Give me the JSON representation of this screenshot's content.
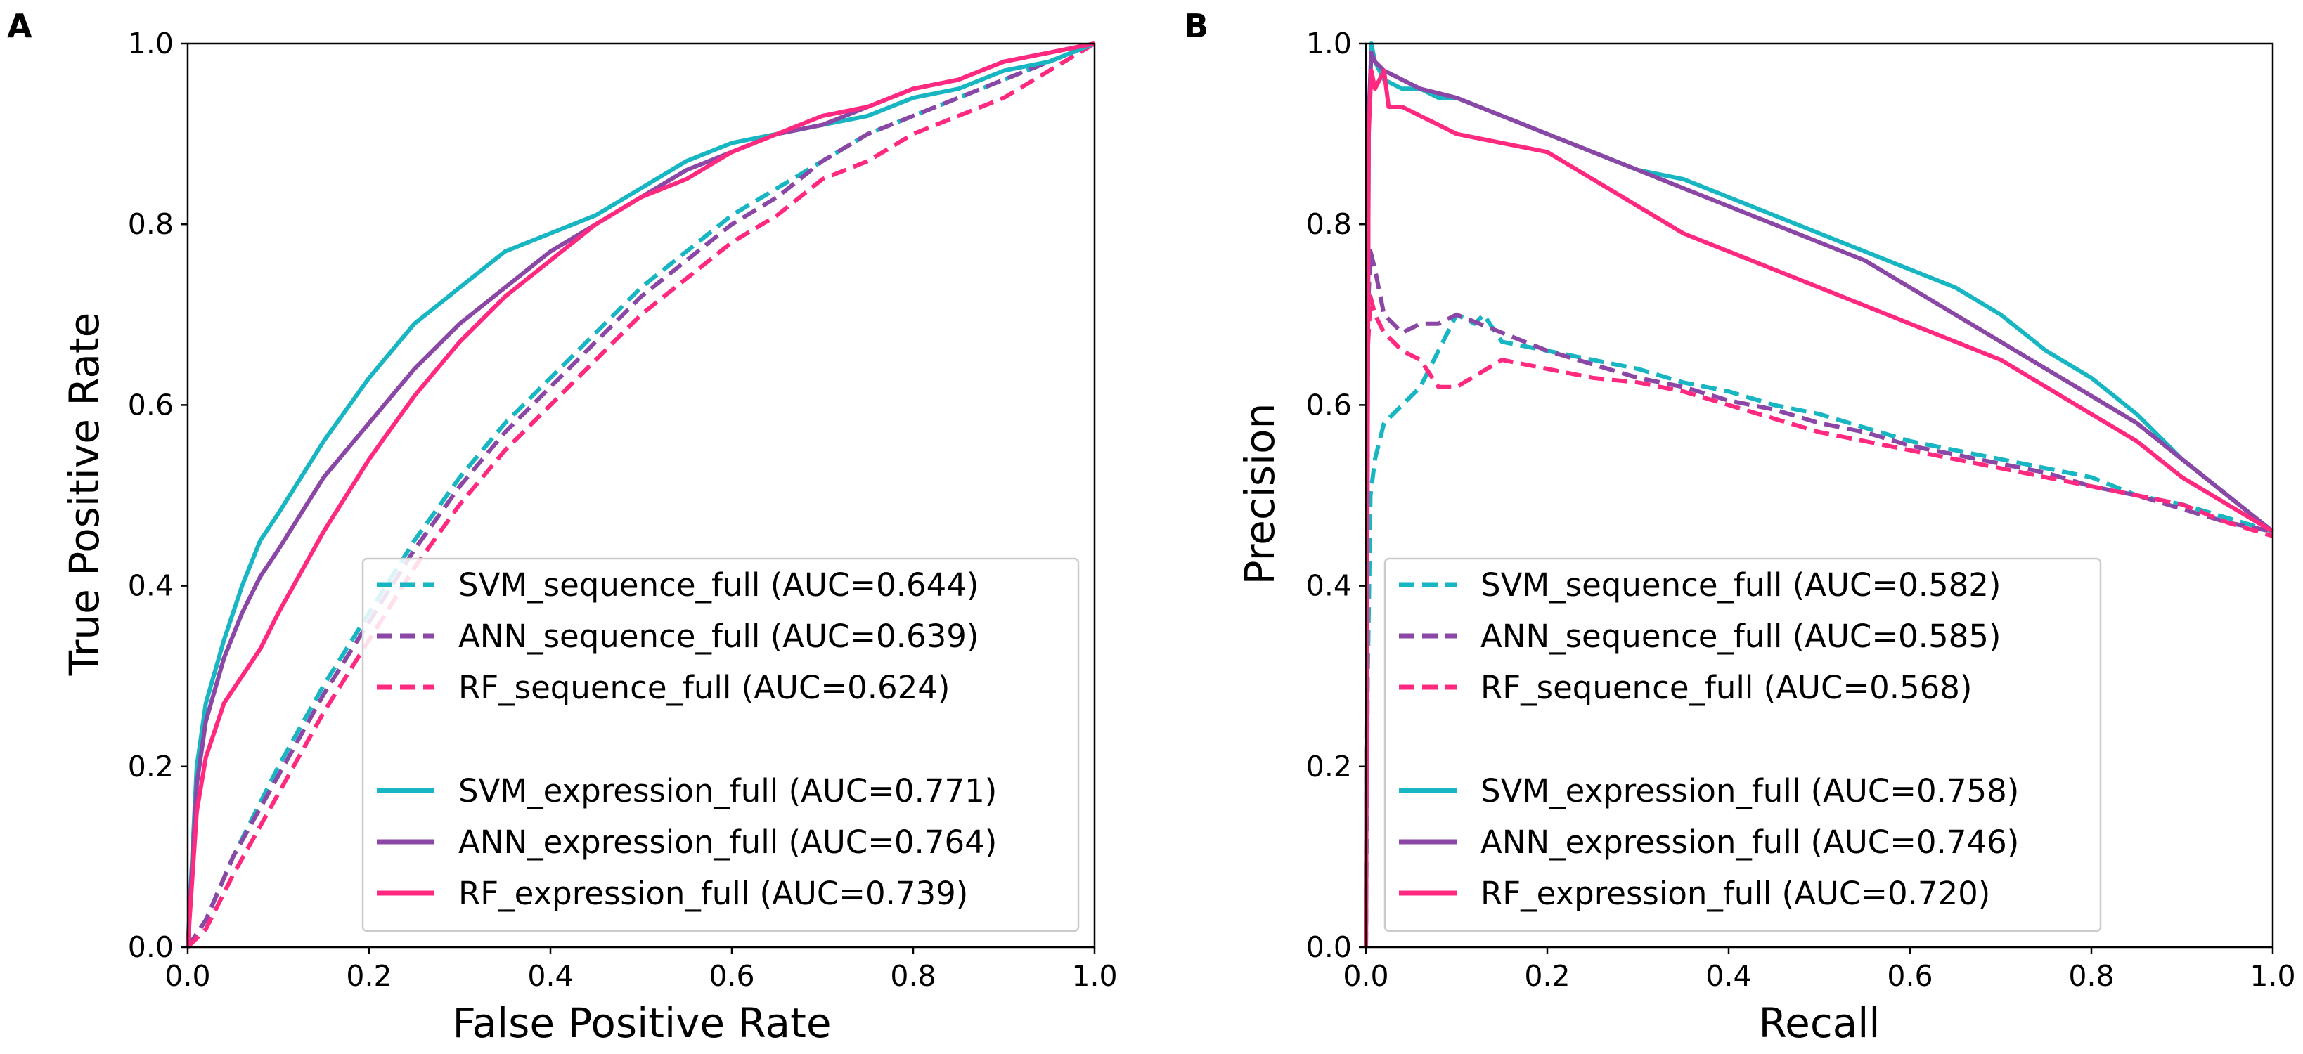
{
  "figure": {
    "panels": [
      "A",
      "B"
    ]
  },
  "colors": {
    "svm": "#17b6c2",
    "ann": "#8b47a6",
    "rf": "#ff2a7f"
  },
  "chart_data": [
    {
      "type": "line",
      "panel": "A",
      "title": "",
      "xlabel": "False Positive Rate",
      "ylabel": "True Positive Rate",
      "xlim": [
        0.0,
        1.0
      ],
      "ylim": [
        0.0,
        1.0
      ],
      "xticks": [
        "0.0",
        "0.2",
        "0.4",
        "0.6",
        "0.8",
        "1.0"
      ],
      "yticks": [
        "0.0",
        "0.2",
        "0.4",
        "0.6",
        "0.8",
        "1.0"
      ],
      "legend_position": "lower-right",
      "series": [
        {
          "name": "SVM_sequence_full (AUC=0.644)",
          "model": "svm",
          "dash": true,
          "x": [
            0.0,
            0.02,
            0.05,
            0.1,
            0.15,
            0.2,
            0.25,
            0.3,
            0.35,
            0.4,
            0.45,
            0.5,
            0.55,
            0.6,
            0.65,
            0.7,
            0.75,
            0.8,
            0.85,
            0.9,
            0.95,
            1.0
          ],
          "y": [
            0.0,
            0.03,
            0.1,
            0.2,
            0.29,
            0.37,
            0.45,
            0.52,
            0.58,
            0.63,
            0.68,
            0.73,
            0.77,
            0.81,
            0.84,
            0.87,
            0.9,
            0.92,
            0.94,
            0.96,
            0.98,
            1.0
          ]
        },
        {
          "name": "ANN_sequence_full (AUC=0.639)",
          "model": "ann",
          "dash": true,
          "x": [
            0.0,
            0.02,
            0.05,
            0.1,
            0.15,
            0.2,
            0.25,
            0.3,
            0.35,
            0.4,
            0.45,
            0.5,
            0.55,
            0.6,
            0.65,
            0.7,
            0.75,
            0.8,
            0.85,
            0.9,
            0.95,
            1.0
          ],
          "y": [
            0.0,
            0.03,
            0.1,
            0.19,
            0.28,
            0.36,
            0.44,
            0.51,
            0.57,
            0.62,
            0.67,
            0.72,
            0.76,
            0.8,
            0.83,
            0.87,
            0.9,
            0.92,
            0.94,
            0.96,
            0.98,
            1.0
          ]
        },
        {
          "name": "RF_sequence_full (AUC=0.624)",
          "model": "rf",
          "dash": true,
          "x": [
            0.0,
            0.02,
            0.05,
            0.1,
            0.15,
            0.2,
            0.25,
            0.3,
            0.35,
            0.4,
            0.45,
            0.5,
            0.55,
            0.6,
            0.65,
            0.7,
            0.75,
            0.8,
            0.85,
            0.9,
            0.95,
            1.0
          ],
          "y": [
            0.0,
            0.02,
            0.08,
            0.17,
            0.26,
            0.34,
            0.42,
            0.49,
            0.55,
            0.6,
            0.65,
            0.7,
            0.74,
            0.78,
            0.81,
            0.85,
            0.87,
            0.9,
            0.92,
            0.94,
            0.97,
            1.0
          ]
        },
        {
          "name": "SVM_expression_full (AUC=0.771)",
          "model": "svm",
          "dash": false,
          "x": [
            0.0,
            0.01,
            0.02,
            0.04,
            0.06,
            0.08,
            0.1,
            0.15,
            0.2,
            0.25,
            0.3,
            0.35,
            0.4,
            0.45,
            0.5,
            0.55,
            0.6,
            0.65,
            0.7,
            0.75,
            0.8,
            0.85,
            0.9,
            0.95,
            1.0
          ],
          "y": [
            0.0,
            0.2,
            0.27,
            0.34,
            0.4,
            0.45,
            0.48,
            0.56,
            0.63,
            0.69,
            0.73,
            0.77,
            0.79,
            0.81,
            0.84,
            0.87,
            0.89,
            0.9,
            0.91,
            0.92,
            0.94,
            0.95,
            0.97,
            0.98,
            1.0
          ]
        },
        {
          "name": "ANN_expression_full (AUC=0.764)",
          "model": "ann",
          "dash": false,
          "x": [
            0.0,
            0.01,
            0.02,
            0.04,
            0.06,
            0.08,
            0.1,
            0.15,
            0.2,
            0.25,
            0.3,
            0.35,
            0.4,
            0.45,
            0.5,
            0.55,
            0.6,
            0.65,
            0.7,
            0.75,
            0.8,
            0.85,
            0.9,
            0.95,
            1.0
          ],
          "y": [
            0.0,
            0.18,
            0.25,
            0.32,
            0.37,
            0.41,
            0.44,
            0.52,
            0.58,
            0.64,
            0.69,
            0.73,
            0.77,
            0.8,
            0.83,
            0.86,
            0.88,
            0.9,
            0.91,
            0.93,
            0.95,
            0.96,
            0.98,
            0.99,
            1.0
          ]
        },
        {
          "name": "RF_expression_full (AUC=0.739)",
          "model": "rf",
          "dash": false,
          "x": [
            0.0,
            0.01,
            0.02,
            0.04,
            0.06,
            0.08,
            0.1,
            0.15,
            0.2,
            0.25,
            0.3,
            0.35,
            0.4,
            0.45,
            0.5,
            0.55,
            0.6,
            0.65,
            0.7,
            0.75,
            0.8,
            0.85,
            0.9,
            0.95,
            1.0
          ],
          "y": [
            0.0,
            0.15,
            0.21,
            0.27,
            0.3,
            0.33,
            0.37,
            0.46,
            0.54,
            0.61,
            0.67,
            0.72,
            0.76,
            0.8,
            0.83,
            0.85,
            0.88,
            0.9,
            0.92,
            0.93,
            0.95,
            0.96,
            0.98,
            0.99,
            1.0
          ]
        }
      ]
    },
    {
      "type": "line",
      "panel": "B",
      "title": "",
      "xlabel": "Recall",
      "ylabel": "Precision",
      "xlim": [
        0.0,
        1.0
      ],
      "ylim": [
        0.0,
        1.0
      ],
      "xticks": [
        "0.0",
        "0.2",
        "0.4",
        "0.6",
        "0.8",
        "1.0"
      ],
      "yticks": [
        "0.0",
        "0.2",
        "0.4",
        "0.6",
        "0.8",
        "1.0"
      ],
      "legend_position": "lower-right",
      "series": [
        {
          "name": "SVM_sequence_full (AUC=0.582)",
          "model": "svm",
          "dash": true,
          "x": [
            0.0,
            0.002,
            0.005,
            0.01,
            0.015,
            0.02,
            0.04,
            0.06,
            0.08,
            0.1,
            0.12,
            0.13,
            0.15,
            0.2,
            0.25,
            0.3,
            0.35,
            0.4,
            0.45,
            0.5,
            0.55,
            0.6,
            0.65,
            0.7,
            0.75,
            0.8,
            0.85,
            0.9,
            0.95,
            1.0
          ],
          "y": [
            0.0,
            0.3,
            0.5,
            0.54,
            0.56,
            0.58,
            0.6,
            0.62,
            0.66,
            0.7,
            0.69,
            0.7,
            0.67,
            0.66,
            0.65,
            0.64,
            0.625,
            0.615,
            0.6,
            0.59,
            0.575,
            0.56,
            0.55,
            0.54,
            0.53,
            0.52,
            0.5,
            0.49,
            0.475,
            0.46
          ]
        },
        {
          "name": "ANN_sequence_full (AUC=0.585)",
          "model": "ann",
          "dash": true,
          "x": [
            0.0,
            0.002,
            0.005,
            0.01,
            0.02,
            0.04,
            0.06,
            0.08,
            0.1,
            0.15,
            0.2,
            0.25,
            0.3,
            0.35,
            0.4,
            0.45,
            0.5,
            0.55,
            0.6,
            0.65,
            0.7,
            0.75,
            0.8,
            0.85,
            0.9,
            0.95,
            1.0
          ],
          "y": [
            0.0,
            0.7,
            0.77,
            0.75,
            0.7,
            0.68,
            0.69,
            0.69,
            0.7,
            0.68,
            0.66,
            0.645,
            0.63,
            0.62,
            0.605,
            0.595,
            0.58,
            0.57,
            0.555,
            0.545,
            0.535,
            0.525,
            0.51,
            0.5,
            0.485,
            0.47,
            0.46
          ]
        },
        {
          "name": "RF_sequence_full (AUC=0.568)",
          "model": "rf",
          "dash": true,
          "x": [
            0.0,
            0.002,
            0.005,
            0.01,
            0.02,
            0.04,
            0.06,
            0.08,
            0.1,
            0.15,
            0.2,
            0.25,
            0.3,
            0.35,
            0.4,
            0.45,
            0.5,
            0.55,
            0.6,
            0.65,
            0.7,
            0.75,
            0.8,
            0.85,
            0.9,
            0.95,
            1.0
          ],
          "y": [
            0.0,
            0.66,
            0.72,
            0.7,
            0.68,
            0.66,
            0.65,
            0.62,
            0.62,
            0.65,
            0.64,
            0.63,
            0.625,
            0.615,
            0.6,
            0.585,
            0.57,
            0.56,
            0.55,
            0.54,
            0.53,
            0.52,
            0.51,
            0.5,
            0.49,
            0.47,
            0.455
          ]
        },
        {
          "name": "SVM_expression_full (AUC=0.758)",
          "model": "svm",
          "dash": false,
          "x": [
            0.0,
            0.003,
            0.006,
            0.01,
            0.02,
            0.04,
            0.06,
            0.08,
            0.1,
            0.15,
            0.2,
            0.25,
            0.3,
            0.35,
            0.4,
            0.45,
            0.5,
            0.55,
            0.6,
            0.65,
            0.7,
            0.75,
            0.8,
            0.85,
            0.9,
            0.95,
            1.0
          ],
          "y": [
            0.0,
            0.9,
            1.0,
            0.98,
            0.96,
            0.95,
            0.95,
            0.94,
            0.94,
            0.92,
            0.9,
            0.88,
            0.86,
            0.85,
            0.83,
            0.81,
            0.79,
            0.77,
            0.75,
            0.73,
            0.7,
            0.66,
            0.63,
            0.59,
            0.54,
            0.5,
            0.46
          ]
        },
        {
          "name": "ANN_expression_full (AUC=0.746)",
          "model": "ann",
          "dash": false,
          "x": [
            0.0,
            0.003,
            0.006,
            0.01,
            0.02,
            0.04,
            0.06,
            0.08,
            0.1,
            0.15,
            0.2,
            0.25,
            0.3,
            0.35,
            0.4,
            0.45,
            0.5,
            0.55,
            0.6,
            0.65,
            0.7,
            0.75,
            0.8,
            0.85,
            0.9,
            0.95,
            1.0
          ],
          "y": [
            0.0,
            0.92,
            0.99,
            0.98,
            0.97,
            0.96,
            0.95,
            0.945,
            0.94,
            0.92,
            0.9,
            0.88,
            0.86,
            0.84,
            0.82,
            0.8,
            0.78,
            0.76,
            0.73,
            0.7,
            0.67,
            0.64,
            0.61,
            0.58,
            0.54,
            0.5,
            0.46
          ]
        },
        {
          "name": "RF_expression_full (AUC=0.720)",
          "model": "rf",
          "dash": false,
          "x": [
            0.0,
            0.003,
            0.006,
            0.01,
            0.02,
            0.025,
            0.04,
            0.06,
            0.08,
            0.1,
            0.15,
            0.2,
            0.25,
            0.3,
            0.35,
            0.4,
            0.45,
            0.5,
            0.55,
            0.6,
            0.65,
            0.7,
            0.75,
            0.8,
            0.85,
            0.9,
            0.95,
            1.0
          ],
          "y": [
            0.0,
            0.9,
            0.97,
            0.95,
            0.97,
            0.93,
            0.93,
            0.92,
            0.91,
            0.9,
            0.89,
            0.88,
            0.85,
            0.82,
            0.79,
            0.77,
            0.75,
            0.73,
            0.71,
            0.69,
            0.67,
            0.65,
            0.62,
            0.59,
            0.56,
            0.52,
            0.49,
            0.46
          ]
        }
      ]
    }
  ]
}
